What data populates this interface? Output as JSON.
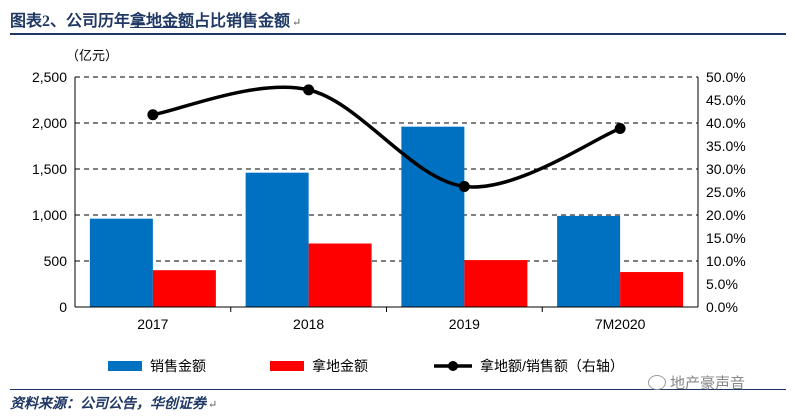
{
  "title": {
    "prefix": "图表2、公司历年",
    "underlined": "拿地金额",
    "suffix": "占比销售金额"
  },
  "chart_data": {
    "type": "bar",
    "unit_label": "（亿元）",
    "categories": [
      "2017",
      "2018",
      "2019",
      "7M2020"
    ],
    "series": [
      {
        "name": "销售金额",
        "type": "bar",
        "axis": "left",
        "color": "#0070c0",
        "values": [
          960,
          1460,
          1960,
          990
        ]
      },
      {
        "name": "拿地金额",
        "type": "bar",
        "axis": "left",
        "color": "#ff0000",
        "values": [
          400,
          690,
          510,
          380
        ]
      },
      {
        "name": "拿地额/销售额（右轴）",
        "type": "line",
        "axis": "right",
        "color": "#000000",
        "values": [
          0.418,
          0.472,
          0.262,
          0.388
        ]
      }
    ],
    "left_axis": {
      "min": 0,
      "max": 2500,
      "ticks": [
        "0",
        "500",
        "1,000",
        "1,500",
        "2,000",
        "2,500"
      ]
    },
    "right_axis": {
      "min": 0,
      "max": 0.5,
      "ticks": [
        "0.0%",
        "5.0%",
        "10.0%",
        "15.0%",
        "20.0%",
        "25.0%",
        "30.0%",
        "35.0%",
        "40.0%",
        "45.0%",
        "50.0%"
      ]
    },
    "grid": "dashed horizontal",
    "legend_position": "bottom"
  },
  "source": "资料来源：公司公告，华创证券",
  "watermark": "地产豪声音",
  "return_mark": "↵"
}
